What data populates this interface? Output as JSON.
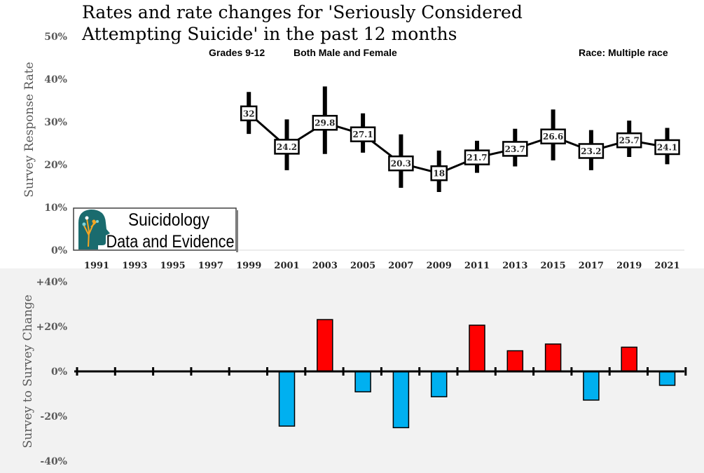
{
  "title_line1": "Rates and rate changes for 'Seriously Considered",
  "title_line2": "Attempting Suicide' in the past 12 months",
  "grades": "Grades 9-12",
  "sex": "Both Male and Female",
  "race": "Race: Multiple race",
  "logo": {
    "line1": "Suicidology",
    "line2": "Data and Evidence"
  },
  "colors": {
    "increase": "#ff0000",
    "decrease": "#00b0f0",
    "line": "#000000",
    "lower_panel_bg": "#f2f2f2"
  },
  "chart_data": [
    {
      "type": "line",
      "x": [
        "1991",
        "1993",
        "1995",
        "1997",
        "1999",
        "2001",
        "2003",
        "2005",
        "2007",
        "2009",
        "2011",
        "2013",
        "2015",
        "2017",
        "2019",
        "2021"
      ],
      "values": [
        null,
        null,
        null,
        null,
        32,
        24.2,
        29.8,
        27.1,
        20.3,
        18,
        21.7,
        23.7,
        26.6,
        23.2,
        25.7,
        24.1
      ],
      "value_labels": [
        "",
        "",
        "",
        "",
        "32",
        "24.2",
        "29.8",
        "27.1",
        "20.3",
        "18",
        "21.7",
        "23.7",
        "26.6",
        "23.2",
        "25.7",
        "24.1"
      ],
      "ci_low": [
        null,
        null,
        null,
        null,
        27.2,
        18.7,
        22.5,
        22.8,
        14.6,
        13.6,
        18.1,
        19.6,
        21,
        18.7,
        21.8,
        20.1
      ],
      "ci_high": [
        null,
        null,
        null,
        null,
        37,
        30.6,
        38.3,
        32,
        27.1,
        23.3,
        25.6,
        28.4,
        32.9,
        28.1,
        30.3,
        28.6
      ],
      "ylabel": "Survey Response Rate",
      "yticks": [
        "0%",
        "10%",
        "20%",
        "30%",
        "40%",
        "50%"
      ],
      "ylim": [
        0,
        50
      ]
    },
    {
      "type": "bar",
      "x": [
        "1991",
        "1993",
        "1995",
        "1997",
        "1999",
        "2001",
        "2003",
        "2005",
        "2007",
        "2009",
        "2011",
        "2013",
        "2015",
        "2017",
        "2019",
        "2021"
      ],
      "values": [
        null,
        null,
        null,
        null,
        null,
        -24.4,
        23.1,
        -9.1,
        -25.1,
        -11.3,
        20.6,
        9.2,
        12.2,
        -12.8,
        10.8,
        -6.2
      ],
      "ylabel": "Survey to Survey Change",
      "yticks": [
        "+40%",
        "+20%",
        "0%",
        "-20%",
        "-40%"
      ],
      "ylim": [
        -40,
        40
      ]
    }
  ]
}
